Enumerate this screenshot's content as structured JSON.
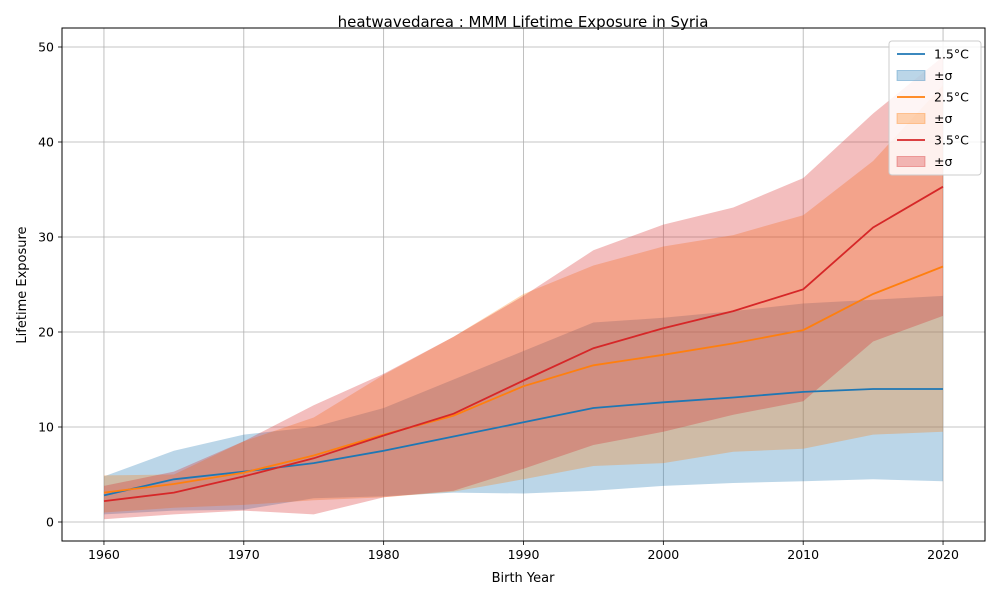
{
  "chart_data": {
    "type": "area",
    "title": "heatwavedarea : MMM Lifetime Exposure in Syria",
    "xlabel": "Birth Year",
    "ylabel": "Lifetime Exposure",
    "xlim": [
      1957,
      2023
    ],
    "ylim": [
      -2,
      52
    ],
    "xticks": [
      1960,
      1970,
      1980,
      1990,
      2000,
      2010,
      2020
    ],
    "yticks": [
      0,
      10,
      20,
      30,
      40,
      50
    ],
    "grid": true,
    "legend_position": "top-right",
    "legend": [
      "1.5°C",
      "±σ",
      "2.5°C",
      "±σ",
      "3.5°C",
      "±σ"
    ],
    "x": [
      1960,
      1965,
      1970,
      1975,
      1980,
      1985,
      1990,
      1995,
      2000,
      2005,
      2010,
      2015,
      2020
    ],
    "series": [
      {
        "name": "1.5°C",
        "band_label": "±σ",
        "color": "#1f77b4",
        "mean": [
          2.8,
          4.5,
          5.3,
          6.2,
          7.5,
          9.0,
          10.5,
          12.0,
          12.6,
          13.1,
          13.7,
          14.0,
          14.0
        ],
        "lower": [
          0.8,
          1.2,
          1.3,
          2.5,
          2.7,
          3.1,
          3.0,
          3.3,
          3.8,
          4.1,
          4.3,
          4.5,
          4.3
        ],
        "upper": [
          4.8,
          7.5,
          9.2,
          10.0,
          12.0,
          15.0,
          18.0,
          21.0,
          21.5,
          22.2,
          23.0,
          23.4,
          23.8
        ]
      },
      {
        "name": "2.5°C",
        "band_label": "±σ",
        "color": "#ff7f0e",
        "mean": [
          3.1,
          4.0,
          5.2,
          7.0,
          9.2,
          11.2,
          14.3,
          16.5,
          17.6,
          18.8,
          20.2,
          24.0,
          26.9
        ],
        "lower": [
          1.0,
          1.5,
          1.8,
          2.3,
          2.6,
          3.2,
          4.5,
          5.9,
          6.2,
          7.4,
          7.7,
          9.2,
          9.5
        ],
        "upper": [
          4.9,
          5.0,
          8.5,
          11.0,
          15.5,
          19.5,
          24.0,
          27.0,
          29.0,
          30.2,
          32.3,
          38.0,
          46.0
        ]
      },
      {
        "name": "3.5°C",
        "band_label": "±σ",
        "color": "#d62728",
        "mean": [
          2.2,
          3.1,
          4.8,
          6.7,
          9.1,
          11.4,
          14.9,
          18.3,
          20.4,
          22.2,
          24.5,
          31.0,
          35.3
        ],
        "lower": [
          0.3,
          0.8,
          1.2,
          0.8,
          2.6,
          3.3,
          5.6,
          8.1,
          9.5,
          11.3,
          12.7,
          19.0,
          21.7
        ],
        "upper": [
          3.8,
          5.3,
          8.5,
          12.3,
          15.6,
          19.5,
          23.8,
          28.6,
          31.3,
          33.1,
          36.2,
          43.0,
          49.0
        ]
      }
    ]
  }
}
